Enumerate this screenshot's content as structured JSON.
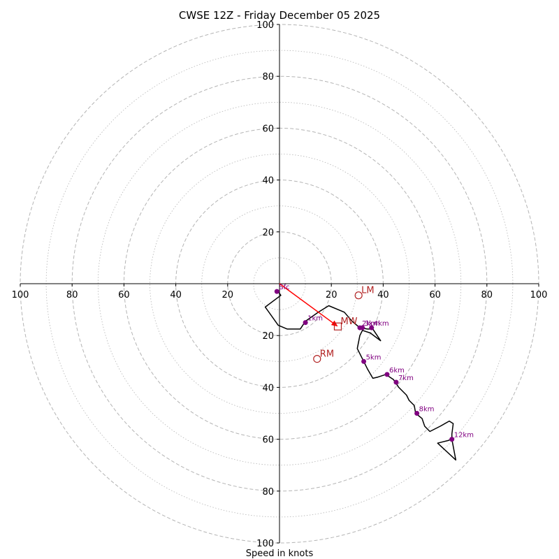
{
  "chart_data": {
    "type": "hodograph",
    "title": "CWSE 12Z - Friday December 05 2025",
    "xlabel": "Speed in knots",
    "axis_range": [
      -100,
      100
    ],
    "axis_ticks": {
      "x": [
        "100",
        "80",
        "60",
        "40",
        "20",
        "20",
        "40",
        "60",
        "80",
        "100"
      ],
      "y": [
        "100",
        "80",
        "60",
        "40",
        "20",
        "20",
        "40",
        "60",
        "80",
        "100"
      ]
    },
    "ring_speeds_dashed": [
      20,
      40,
      60,
      80,
      100
    ],
    "ring_speeds_dotted": [
      10,
      30,
      50,
      70,
      90
    ],
    "colors": {
      "trace": "#000000",
      "height_points": "#800080",
      "motion": "#b22222",
      "mean_wind_arrow": "#ff0000",
      "grid": "#b4b4b4"
    },
    "wind_trace_uv": [
      [
        -0.5,
        -3
      ],
      [
        0.5,
        -4.5
      ],
      [
        -5.5,
        -9
      ],
      [
        -0.5,
        -16
      ],
      [
        3,
        -17.5
      ],
      [
        8,
        -17.5
      ],
      [
        10,
        -14.5
      ],
      [
        15,
        -11
      ],
      [
        19,
        -8.5
      ],
      [
        25,
        -11
      ],
      [
        28,
        -14.5
      ],
      [
        31,
        -17
      ],
      [
        34,
        -17.5
      ],
      [
        36,
        -17.5
      ],
      [
        39,
        -22
      ],
      [
        35,
        -19
      ],
      [
        32,
        -18
      ],
      [
        31,
        -20
      ],
      [
        30,
        -25
      ],
      [
        32,
        -29
      ],
      [
        34,
        -33
      ],
      [
        36,
        -36.5
      ],
      [
        38,
        -36
      ],
      [
        41,
        -35
      ],
      [
        44,
        -37
      ],
      [
        46,
        -40
      ],
      [
        49,
        -43
      ],
      [
        50,
        -45
      ],
      [
        52,
        -47
      ],
      [
        52.5,
        -50
      ],
      [
        55,
        -52
      ],
      [
        56,
        -55
      ],
      [
        58,
        -57
      ],
      [
        62,
        -55
      ],
      [
        65.5,
        -53
      ],
      [
        67,
        -54
      ],
      [
        66.5,
        -58
      ],
      [
        66.5,
        -60
      ],
      [
        68,
        -68
      ],
      [
        61,
        -61.5
      ],
      [
        65,
        -60.5
      ],
      [
        66.5,
        -60
      ]
    ],
    "height_points": [
      {
        "label": "Sfc",
        "u": -1,
        "v": -3
      },
      {
        "label": "1km",
        "u": 10,
        "v": -15
      },
      {
        "label": "2km",
        "u": 31,
        "v": -17
      },
      {
        "label": "3km",
        "u": 32,
        "v": -17
      },
      {
        "label": "4km",
        "u": 35.5,
        "v": -17
      },
      {
        "label": "5km",
        "u": 32.5,
        "v": -30
      },
      {
        "label": "6km",
        "u": 41.5,
        "v": -35
      },
      {
        "label": "7km",
        "u": 45,
        "v": -38
      },
      {
        "label": "8km",
        "u": 53,
        "v": -50
      },
      {
        "label": "12km",
        "u": 66.5,
        "v": -60
      }
    ],
    "storm_motion": [
      {
        "label": "LM",
        "marker": "circle",
        "u": 30.5,
        "v": -4.5
      },
      {
        "label": "MW",
        "marker": "square",
        "u": 22.5,
        "v": -16.5
      },
      {
        "label": "RM",
        "marker": "circle",
        "u": 14.5,
        "v": -29
      }
    ],
    "mean_wind_arrow": {
      "from": [
        0,
        0
      ],
      "to": [
        22.5,
        -16.5
      ]
    }
  }
}
